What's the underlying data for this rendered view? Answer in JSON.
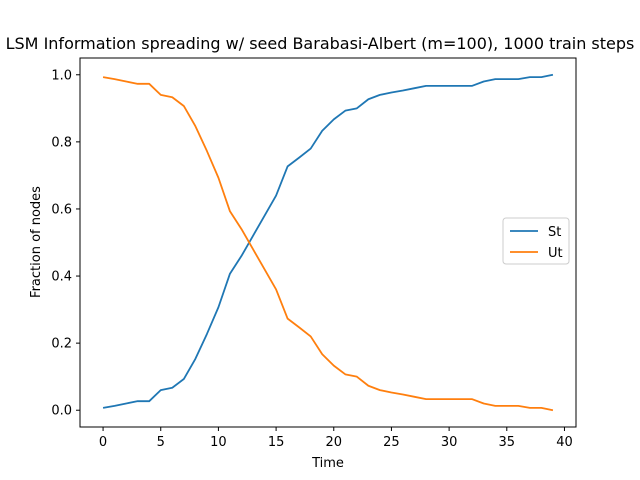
{
  "chart_data": {
    "type": "line",
    "title": "LSM Information spreading w/ seed Barabasi-Albert (m=100), 1000 train steps",
    "xlabel": "Time",
    "ylabel": "Fraction of nodes",
    "xlim": [
      -2,
      41
    ],
    "ylim": [
      -0.05,
      1.05
    ],
    "xticks": [
      0,
      5,
      10,
      15,
      20,
      25,
      30,
      35,
      40
    ],
    "yticks": [
      0.0,
      0.2,
      0.4,
      0.6,
      0.8,
      1.0
    ],
    "xtick_labels": [
      "0",
      "5",
      "10",
      "15",
      "20",
      "25",
      "30",
      "35",
      "40"
    ],
    "ytick_labels": [
      "0.0",
      "0.2",
      "0.4",
      "0.6",
      "0.8",
      "1.0"
    ],
    "grid": false,
    "legend_position": "center-right",
    "x": [
      0,
      1,
      2,
      3,
      4,
      5,
      6,
      7,
      8,
      9,
      10,
      11,
      12,
      13,
      14,
      15,
      16,
      17,
      18,
      19,
      20,
      21,
      22,
      23,
      24,
      25,
      26,
      27,
      28,
      29,
      30,
      31,
      32,
      33,
      34,
      35,
      36,
      37,
      38,
      39
    ],
    "series": [
      {
        "name": "St",
        "color": "#1f77b4",
        "values": [
          0.007,
          0.013,
          0.02,
          0.027,
          0.027,
          0.06,
          0.067,
          0.093,
          0.153,
          0.227,
          0.307,
          0.407,
          0.46,
          0.52,
          0.58,
          0.64,
          0.727,
          0.753,
          0.78,
          0.833,
          0.867,
          0.893,
          0.9,
          0.927,
          0.94,
          0.947,
          0.953,
          0.96,
          0.967,
          0.967,
          0.967,
          0.967,
          0.967,
          0.98,
          0.987,
          0.987,
          0.987,
          0.993,
          0.993,
          1.0
        ]
      },
      {
        "name": "Ut",
        "color": "#ff7f0e",
        "values": [
          0.993,
          0.987,
          0.98,
          0.973,
          0.973,
          0.94,
          0.933,
          0.907,
          0.847,
          0.773,
          0.693,
          0.593,
          0.54,
          0.48,
          0.42,
          0.36,
          0.273,
          0.247,
          0.22,
          0.167,
          0.133,
          0.107,
          0.1,
          0.073,
          0.06,
          0.053,
          0.047,
          0.04,
          0.033,
          0.033,
          0.033,
          0.033,
          0.033,
          0.02,
          0.013,
          0.013,
          0.013,
          0.007,
          0.007,
          0.0
        ]
      }
    ]
  }
}
